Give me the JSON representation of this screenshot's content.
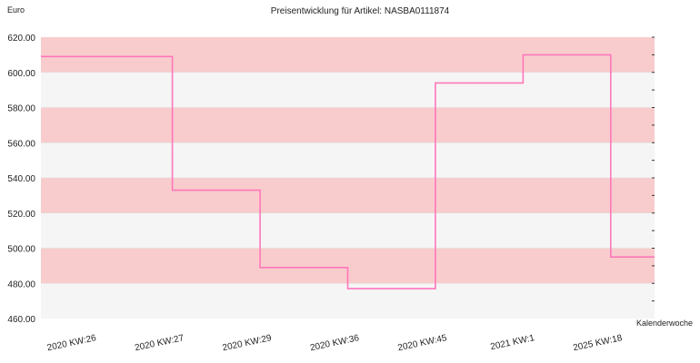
{
  "chart_data": {
    "type": "line",
    "step": true,
    "title": "Preisentwicklung für Artikel: NASBA0111874",
    "ylabel": "Euro",
    "xlabel": "Kalenderwoche",
    "ylim": [
      460,
      620
    ],
    "yticks": [
      "620.00",
      "600.00",
      "580.00",
      "560.00",
      "540.00",
      "520.00",
      "500.00",
      "480.00",
      "460.00"
    ],
    "categories": [
      "2020 KW:26",
      "2020 KW:27",
      "2020 KW:29",
      "2020 KW:36",
      "2020 KW:45",
      "2021 KW:1",
      "2025 KW:18"
    ],
    "series": [
      {
        "values": [
          609,
          533,
          489,
          477,
          594,
          610,
          495
        ],
        "color": "#ff77bb"
      }
    ],
    "band_colors": [
      "#f8cccc",
      "#f5f5f5"
    ],
    "grid": true
  }
}
